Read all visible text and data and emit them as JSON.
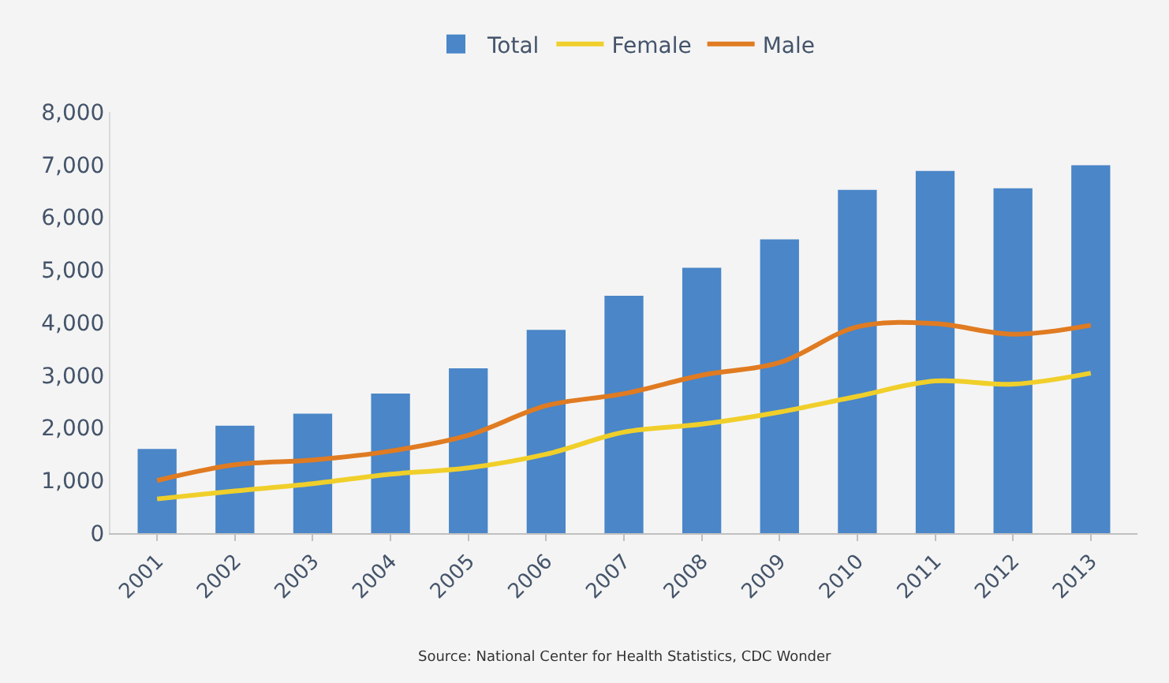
{
  "chart_data": {
    "type": "bar",
    "categories": [
      "2001",
      "2002",
      "2003",
      "2004",
      "2005",
      "2006",
      "2007",
      "2008",
      "2009",
      "2010",
      "2011",
      "2012",
      "2013"
    ],
    "series": [
      {
        "name": "Total",
        "color": "#4a86c8",
        "values": [
          1600,
          2040,
          2270,
          2650,
          3130,
          3860,
          4510,
          5040,
          5580,
          6520,
          6880,
          6550,
          6990
        ]
      },
      {
        "name": "Female",
        "type": "line",
        "color": "#f0cf2a",
        "values": [
          650,
          800,
          940,
          1120,
          1240,
          1500,
          1920,
          2070,
          2300,
          2600,
          2890,
          2830,
          3040
        ]
      },
      {
        "name": "Male",
        "type": "line",
        "color": "#e07b22",
        "values": [
          1000,
          1300,
          1390,
          1560,
          1860,
          2420,
          2650,
          3000,
          3240,
          3920,
          3980,
          3780,
          3950
        ]
      }
    ],
    "ylim": [
      0,
      8000
    ],
    "yticks": [
      {
        "value": 0,
        "label": "0"
      },
      {
        "value": 1000,
        "label": "1,000"
      },
      {
        "value": 2000,
        "label": "2,000"
      },
      {
        "value": 3000,
        "label": "3,000"
      },
      {
        "value": 4000,
        "label": "4,000"
      },
      {
        "value": 5000,
        "label": "5,000"
      },
      {
        "value": 6000,
        "label": "6,000"
      },
      {
        "value": 7000,
        "label": "7,000"
      },
      {
        "value": 8000,
        "label": "8,000"
      }
    ],
    "grid": false,
    "legend": "top",
    "marker": "none",
    "line_style": "solid",
    "annotations": [
      "Source: National Center for Health Statistics, CDC Wonder"
    ]
  }
}
